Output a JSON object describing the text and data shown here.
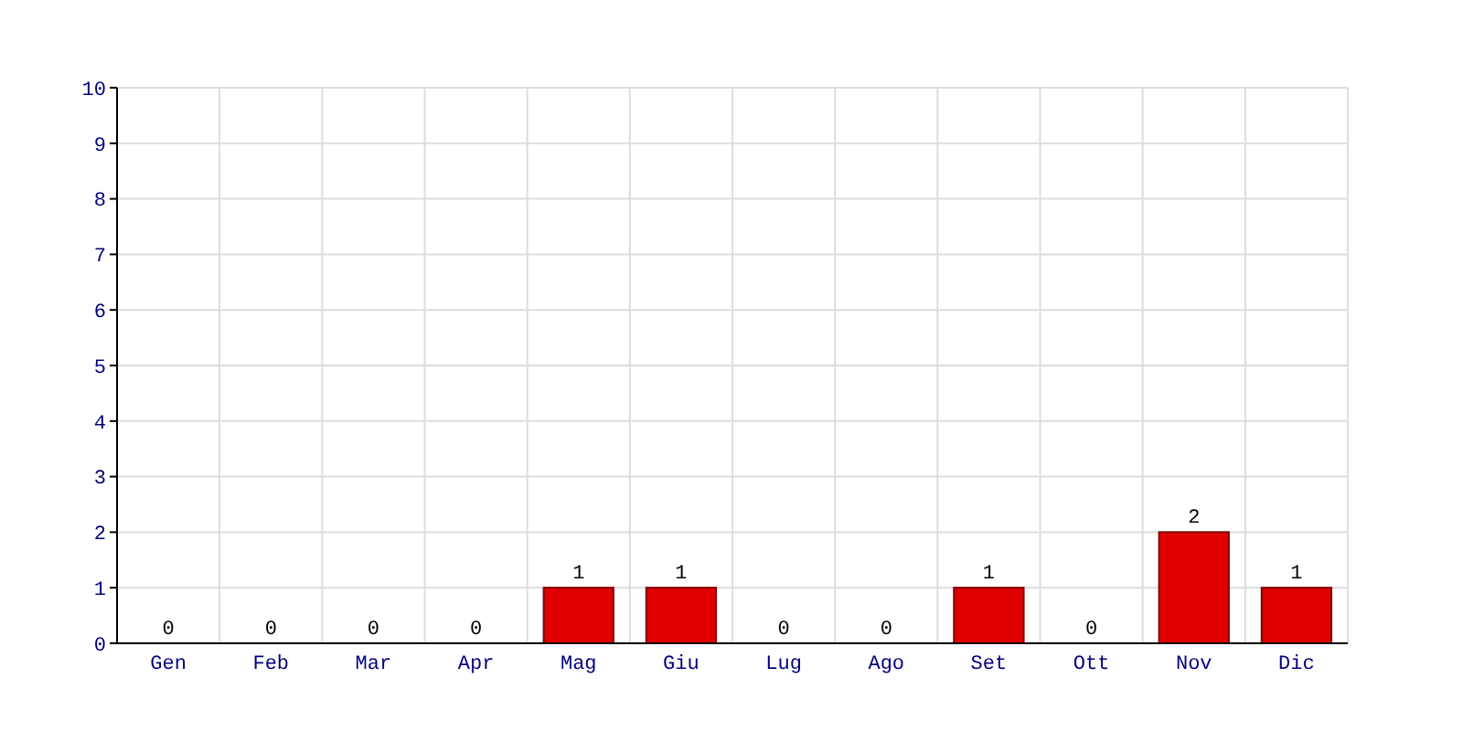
{
  "chart_data": {
    "type": "bar",
    "categories": [
      "Gen",
      "Feb",
      "Mar",
      "Apr",
      "Mag",
      "Giu",
      "Lug",
      "Ago",
      "Set",
      "Ott",
      "Nov",
      "Dic"
    ],
    "values": [
      0,
      0,
      0,
      0,
      1,
      1,
      0,
      0,
      1,
      0,
      2,
      1
    ],
    "color": "#e00000",
    "ylim": [
      0,
      10
    ],
    "yticks": [
      0,
      1,
      2,
      3,
      4,
      5,
      6,
      7,
      8,
      9,
      10
    ],
    "grid": true,
    "data_labels": true
  }
}
